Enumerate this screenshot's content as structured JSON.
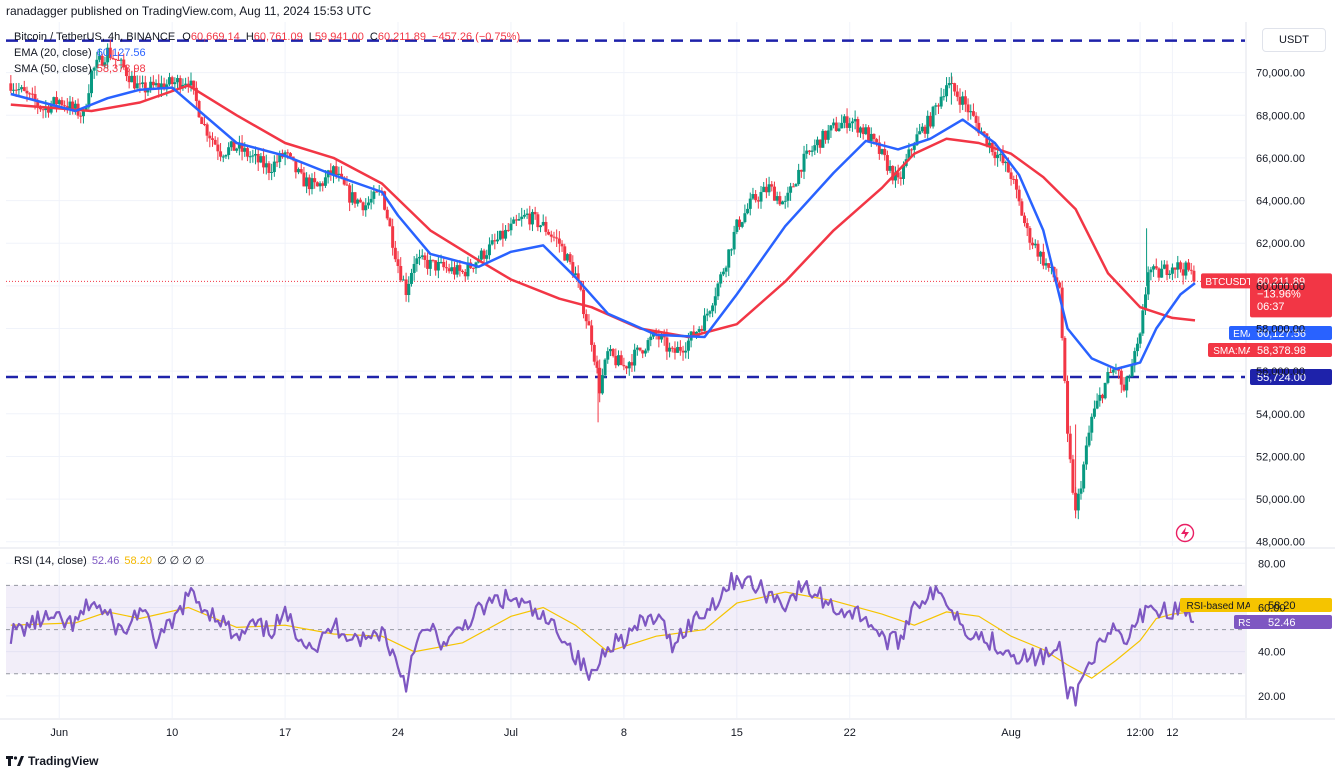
{
  "header": {
    "publisher": "ranadagger published on TradingView.com, Aug 11, 2024 15:53 UTC"
  },
  "legend": {
    "symbol": "Bitcoin / TetherUS, 4h, BINANCE",
    "o_label": "O",
    "o": "60,669.14",
    "h_label": "H",
    "h": "60,761.09",
    "l_label": "L",
    "l": "59,941.00",
    "c_label": "C",
    "c": "60,211.89",
    "change": "−457.26 (−0.75%)",
    "ema_label": "EMA (20, close)",
    "ema_value": "60,127.56",
    "sma_label": "SMA (50, close)",
    "sma_value": "58,378.98",
    "rsi_label": "RSI (14, close)",
    "rsi_value": "52.46",
    "rsi_ma_value": "58.20",
    "rsi_extra": "∅ ∅ ∅ ∅"
  },
  "currency": "USDT",
  "branding": "TradingView",
  "price_badges": {
    "symbol": "BTCUSDT",
    "price": "60,211.89",
    "change_pct": "−13.96%",
    "countdown": "06:37",
    "ema_label": "EMA",
    "ema_value": "60,127.56",
    "sma_label": "SMA:MA",
    "sma_value": "58,378.98",
    "level_value": "55,724.00",
    "rsi_ma_label": "RSI-based MA",
    "rsi_ma_value": "58.20",
    "rsi_label": "RSI",
    "rsi_value": "52.46"
  },
  "colors": {
    "up": "#089981",
    "down": "#f23645",
    "ema": "#2962ff",
    "sma": "#f23645",
    "rsi": "#7e57c2",
    "rsi_ma": "#f5c400",
    "level_line": "#1e22aa"
  },
  "chart_data": {
    "type": "candlestick",
    "symbol": "BTCUSDT",
    "interval": "4h",
    "price_axis": {
      "ticks": [
        48000,
        50000,
        52000,
        54000,
        56000,
        58000,
        60000,
        62000,
        64000,
        66000,
        68000,
        70000
      ],
      "tick_labels": [
        "48,000.00",
        "50,000.00",
        "52,000.00",
        "54,000.00",
        "56,000.00",
        "58,000.00",
        "60,000.00",
        "62,000.00",
        "64,000.00",
        "66,000.00",
        "68,000.00",
        "70,000.00"
      ],
      "range": [
        47800,
        72000
      ]
    },
    "time_axis": {
      "labels": [
        "Jun",
        "10",
        "17",
        "24",
        "Jul",
        "8",
        "15",
        "22",
        "Aug",
        "12:00",
        "12"
      ],
      "label_days": [
        3,
        10,
        17,
        24,
        31,
        38,
        45,
        52,
        62,
        70,
        72
      ]
    },
    "horizontal_levels": [
      71500,
      55724
    ],
    "price_path": [
      [
        0,
        69500
      ],
      [
        2,
        68300
      ],
      [
        3,
        68700
      ],
      [
        4.5,
        68000
      ],
      [
        5,
        70000
      ],
      [
        6,
        71000
      ],
      [
        7,
        70200
      ],
      [
        8,
        69200
      ],
      [
        10,
        69500
      ],
      [
        11,
        69700
      ],
      [
        12,
        67500
      ],
      [
        13,
        66300
      ],
      [
        14,
        66500
      ],
      [
        15,
        66000
      ],
      [
        16,
        65500
      ],
      [
        17,
        66200
      ],
      [
        18,
        65000
      ],
      [
        19,
        64600
      ],
      [
        20,
        65400
      ],
      [
        21,
        64200
      ],
      [
        22,
        63800
      ],
      [
        23,
        64400
      ],
      [
        24,
        61000
      ],
      [
        24.5,
        59800
      ],
      [
        25,
        61200
      ],
      [
        26,
        61000
      ],
      [
        27,
        60800
      ],
      [
        28,
        60600
      ],
      [
        29,
        61300
      ],
      [
        30,
        62000
      ],
      [
        31,
        62700
      ],
      [
        32,
        63300
      ],
      [
        33,
        62800
      ],
      [
        34,
        62000
      ],
      [
        35,
        60500
      ],
      [
        36,
        57500
      ],
      [
        36.5,
        55200
      ],
      [
        37,
        56800
      ],
      [
        38,
        56200
      ],
      [
        39,
        57000
      ],
      [
        40,
        57700
      ],
      [
        41,
        56800
      ],
      [
        42,
        57400
      ],
      [
        43,
        58400
      ],
      [
        44,
        60400
      ],
      [
        45,
        62800
      ],
      [
        46,
        64000
      ],
      [
        47,
        64600
      ],
      [
        48,
        63800
      ],
      [
        49,
        65700
      ],
      [
        50,
        66700
      ],
      [
        51,
        67400
      ],
      [
        52,
        67800
      ],
      [
        53,
        67200
      ],
      [
        54,
        66100
      ],
      [
        55,
        64800
      ],
      [
        56,
        66800
      ],
      [
        57,
        67800
      ],
      [
        58,
        69500
      ],
      [
        59,
        68700
      ],
      [
        60,
        67400
      ],
      [
        61,
        66300
      ],
      [
        62,
        65200
      ],
      [
        63,
        62500
      ],
      [
        64,
        61200
      ],
      [
        65,
        60000
      ],
      [
        65.5,
        52800
      ],
      [
        66,
        49300
      ],
      [
        67,
        53800
      ],
      [
        68,
        55700
      ],
      [
        68.5,
        56200
      ],
      [
        69,
        55000
      ],
      [
        70,
        57500
      ],
      [
        70.5,
        60800
      ],
      [
        71,
        60500
      ],
      [
        72,
        61000
      ],
      [
        73,
        60700
      ],
      [
        73.4,
        60211.89
      ]
    ],
    "ema_path": [
      [
        0,
        69000
      ],
      [
        4,
        68200
      ],
      [
        6,
        68800
      ],
      [
        8,
        69200
      ],
      [
        10,
        69300
      ],
      [
        12,
        68000
      ],
      [
        14,
        66700
      ],
      [
        17,
        66100
      ],
      [
        20,
        65200
      ],
      [
        23,
        64400
      ],
      [
        24,
        63300
      ],
      [
        26,
        61500
      ],
      [
        29,
        60900
      ],
      [
        31,
        61600
      ],
      [
        33,
        61900
      ],
      [
        35,
        60400
      ],
      [
        37,
        58700
      ],
      [
        40,
        57700
      ],
      [
        43,
        57600
      ],
      [
        45,
        59600
      ],
      [
        48,
        62800
      ],
      [
        51,
        65300
      ],
      [
        53,
        66800
      ],
      [
        55,
        66400
      ],
      [
        57,
        66900
      ],
      [
        59,
        67800
      ],
      [
        61,
        66700
      ],
      [
        62.5,
        65200
      ],
      [
        64,
        62600
      ],
      [
        65.5,
        58000
      ],
      [
        67,
        56600
      ],
      [
        68.5,
        56100
      ],
      [
        70,
        56400
      ],
      [
        71,
        58000
      ],
      [
        72.5,
        59600
      ],
      [
        73.4,
        60127.56
      ]
    ],
    "sma_path": [
      [
        0,
        68500
      ],
      [
        5,
        68200
      ],
      [
        8,
        68600
      ],
      [
        11,
        69400
      ],
      [
        14,
        68000
      ],
      [
        17,
        66700
      ],
      [
        20,
        66000
      ],
      [
        23,
        64800
      ],
      [
        26,
        62600
      ],
      [
        29,
        61200
      ],
      [
        31,
        60300
      ],
      [
        34,
        59400
      ],
      [
        36,
        59000
      ],
      [
        39,
        58000
      ],
      [
        42,
        57600
      ],
      [
        45,
        58200
      ],
      [
        48,
        60200
      ],
      [
        51,
        62600
      ],
      [
        54,
        64600
      ],
      [
        56,
        66200
      ],
      [
        58,
        66900
      ],
      [
        60,
        66700
      ],
      [
        62,
        66200
      ],
      [
        64,
        65100
      ],
      [
        66,
        63600
      ],
      [
        68,
        60600
      ],
      [
        70,
        59000
      ],
      [
        72,
        58500
      ],
      [
        73.4,
        58378.98
      ]
    ],
    "rsi_axis": {
      "ticks": [
        20,
        40,
        60,
        80
      ],
      "tick_labels": [
        "20.00",
        "40.00",
        "60.00",
        "80.00"
      ],
      "range": [
        10,
        86
      ],
      "band": [
        30,
        70
      ]
    },
    "rsi_path": [
      [
        0,
        48
      ],
      [
        2,
        55
      ],
      [
        4,
        52
      ],
      [
        5,
        63
      ],
      [
        6,
        56
      ],
      [
        7,
        48
      ],
      [
        8,
        60
      ],
      [
        9,
        45
      ],
      [
        10,
        52
      ],
      [
        11,
        66
      ],
      [
        12,
        60
      ],
      [
        13,
        55
      ],
      [
        14,
        45
      ],
      [
        15,
        52
      ],
      [
        16,
        49
      ],
      [
        17,
        56
      ],
      [
        18,
        47
      ],
      [
        19,
        42
      ],
      [
        20,
        52
      ],
      [
        21,
        48
      ],
      [
        22,
        45
      ],
      [
        23,
        50
      ],
      [
        24,
        34
      ],
      [
        24.5,
        25
      ],
      [
        25,
        44
      ],
      [
        26,
        50
      ],
      [
        27,
        42
      ],
      [
        28,
        52
      ],
      [
        29,
        58
      ],
      [
        30,
        63
      ],
      [
        31,
        64
      ],
      [
        32,
        60
      ],
      [
        33,
        54
      ],
      [
        34,
        50
      ],
      [
        35,
        38
      ],
      [
        36,
        28
      ],
      [
        37,
        44
      ],
      [
        38,
        46
      ],
      [
        39,
        52
      ],
      [
        40,
        56
      ],
      [
        41,
        44
      ],
      [
        42,
        52
      ],
      [
        43,
        58
      ],
      [
        44,
        66
      ],
      [
        45,
        74
      ],
      [
        46,
        70
      ],
      [
        47,
        66
      ],
      [
        48,
        62
      ],
      [
        49,
        69
      ],
      [
        50,
        66
      ],
      [
        51,
        60
      ],
      [
        52,
        58
      ],
      [
        53,
        56
      ],
      [
        54,
        46
      ],
      [
        55,
        44
      ],
      [
        56,
        62
      ],
      [
        57,
        66
      ],
      [
        58,
        64
      ],
      [
        59,
        52
      ],
      [
        60,
        47
      ],
      [
        61,
        44
      ],
      [
        62,
        40
      ],
      [
        63,
        37
      ],
      [
        64,
        38
      ],
      [
        65,
        40
      ],
      [
        65.5,
        22
      ],
      [
        66,
        20
      ],
      [
        67,
        38
      ],
      [
        68,
        45
      ],
      [
        68.5,
        50
      ],
      [
        69,
        43
      ],
      [
        70,
        55
      ],
      [
        70.5,
        63
      ],
      [
        71,
        58
      ],
      [
        72,
        59
      ],
      [
        73,
        58
      ],
      [
        73.4,
        52.46
      ]
    ],
    "rsi_ma_path": [
      [
        0,
        52
      ],
      [
        4,
        53
      ],
      [
        6,
        58
      ],
      [
        8,
        55
      ],
      [
        11,
        60
      ],
      [
        14,
        51
      ],
      [
        17,
        52
      ],
      [
        20,
        48
      ],
      [
        23,
        47
      ],
      [
        25,
        40
      ],
      [
        28,
        44
      ],
      [
        31,
        56
      ],
      [
        33,
        60
      ],
      [
        35,
        52
      ],
      [
        37,
        40
      ],
      [
        40,
        47
      ],
      [
        43,
        50
      ],
      [
        45,
        62
      ],
      [
        48,
        67
      ],
      [
        51,
        63
      ],
      [
        54,
        57
      ],
      [
        56,
        52
      ],
      [
        58,
        58
      ],
      [
        60,
        56
      ],
      [
        62,
        47
      ],
      [
        64,
        41
      ],
      [
        65.5,
        34
      ],
      [
        67,
        28
      ],
      [
        68.5,
        36
      ],
      [
        70,
        45
      ],
      [
        71,
        55
      ],
      [
        72,
        57
      ],
      [
        73.4,
        58.2
      ]
    ]
  }
}
